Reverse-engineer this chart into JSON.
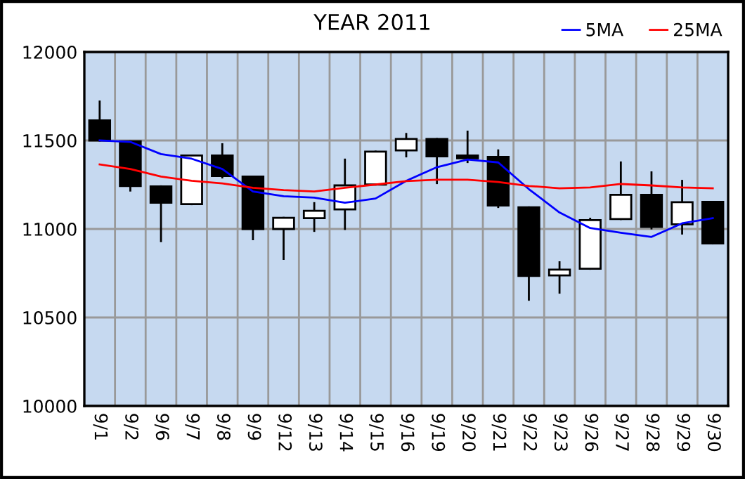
{
  "chart_data": {
    "type": "candlestick",
    "title": "YEAR 2011",
    "categories": [
      "9/1",
      "9/2",
      "9/6",
      "9/7",
      "9/8",
      "9/9",
      "9/12",
      "9/13",
      "9/14",
      "9/15",
      "9/16",
      "9/19",
      "9/20",
      "9/21",
      "9/22",
      "9/23",
      "9/26",
      "9/27",
      "9/28",
      "9/29",
      "9/30"
    ],
    "ohlc": [
      [
        11614,
        11720,
        11500,
        11500
      ],
      [
        11495,
        11495,
        11217,
        11243
      ],
      [
        11241,
        11241,
        10931,
        11148
      ],
      [
        11140,
        11415,
        11140,
        11415
      ],
      [
        11415,
        11479,
        11291,
        11299
      ],
      [
        11296,
        11296,
        10942,
        11000
      ],
      [
        11000,
        11063,
        10831,
        11063
      ],
      [
        11061,
        11146,
        10989,
        11103
      ],
      [
        11111,
        11392,
        11000,
        11246
      ],
      [
        11251,
        11437,
        11251,
        11437
      ],
      [
        11444,
        11537,
        11410,
        11508
      ],
      [
        11508,
        11508,
        11259,
        11410
      ],
      [
        11415,
        11550,
        11378,
        11399
      ],
      [
        11407,
        11444,
        11124,
        11132
      ],
      [
        11122,
        11122,
        10600,
        10735
      ],
      [
        10738,
        10812,
        10640,
        10770
      ],
      [
        10775,
        11058,
        10775,
        11050
      ],
      [
        11056,
        11376,
        11056,
        11193
      ],
      [
        11193,
        11320,
        11003,
        11011
      ],
      [
        11026,
        11272,
        10974,
        11151
      ],
      [
        11153,
        11153,
        10918,
        10918
      ]
    ],
    "series": [
      {
        "name": "5MA",
        "type": "line",
        "color": "#0000ff",
        "values": [
          11500,
          11492,
          11423,
          11397,
          11339,
          11212,
          11185,
          11177,
          11148,
          11172,
          11272,
          11349,
          11392,
          11376,
          11225,
          11093,
          11005,
          10979,
          10955,
          11032,
          11061
        ]
      },
      {
        "name": "25MA",
        "type": "line",
        "color": "#ff0000",
        "values": [
          11365,
          11339,
          11296,
          11272,
          11257,
          11233,
          11220,
          11212,
          11233,
          11251,
          11270,
          11278,
          11278,
          11265,
          11243,
          11230,
          11235,
          11254,
          11246,
          11235,
          11230
        ]
      }
    ],
    "ylim": [
      10000,
      12000
    ],
    "yticks": [
      10000,
      10500,
      11000,
      11500,
      12000
    ],
    "grid": true,
    "legend": "top right",
    "marker": "none",
    "line_style": "solid"
  }
}
